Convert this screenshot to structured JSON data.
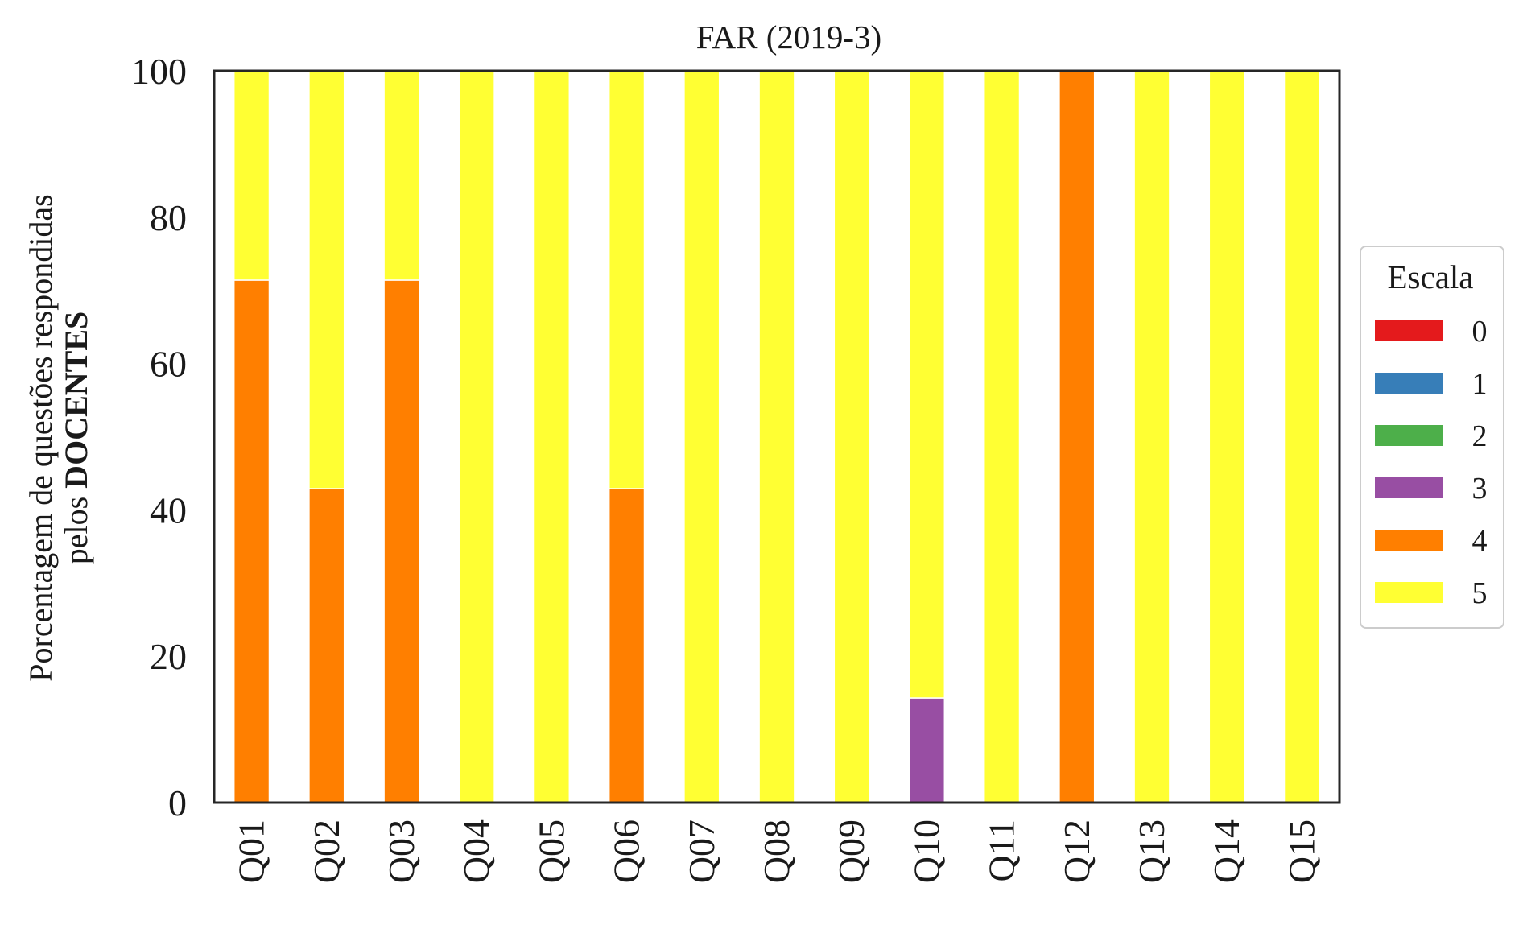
{
  "chart_data": {
    "type": "bar",
    "stacked": true,
    "orientation": "vertical",
    "title": "FAR (2019-3)",
    "ylabel_line1": "Porcentagem de questões respondidas",
    "ylabel_line2_prefix": "pelos ",
    "ylabel_line2_bold": "DOCENTES",
    "xlabel": "",
    "ylim": [
      0,
      100
    ],
    "yticks": [
      0,
      20,
      40,
      60,
      80,
      100
    ],
    "grid": false,
    "legend": {
      "title": "Escala",
      "placement": "right-center-outside"
    },
    "categories": [
      "Q01",
      "Q02",
      "Q03",
      "Q04",
      "Q05",
      "Q06",
      "Q07",
      "Q08",
      "Q09",
      "Q10",
      "Q11",
      "Q12",
      "Q13",
      "Q14",
      "Q15"
    ],
    "series": [
      {
        "name": "0",
        "color": "#e41a1c",
        "values": [
          0,
          0,
          0,
          0,
          0,
          0,
          0,
          0,
          0,
          0,
          0,
          0,
          0,
          0,
          0
        ]
      },
      {
        "name": "1",
        "color": "#377eb8",
        "values": [
          0,
          0,
          0,
          0,
          0,
          0,
          0,
          0,
          0,
          0,
          0,
          0,
          0,
          0,
          0
        ]
      },
      {
        "name": "2",
        "color": "#4daf4a",
        "values": [
          0,
          0,
          0,
          0,
          0,
          0,
          0,
          0,
          0,
          0,
          0,
          0,
          0,
          0,
          0
        ]
      },
      {
        "name": "3",
        "color": "#984ea3",
        "values": [
          0,
          0,
          0,
          0,
          0,
          0,
          0,
          0,
          0,
          14.3,
          0,
          0,
          0,
          0,
          0
        ]
      },
      {
        "name": "4",
        "color": "#ff7f00",
        "values": [
          71.4,
          42.9,
          71.4,
          0,
          0,
          42.9,
          0,
          0,
          0,
          0,
          0,
          100,
          0,
          0,
          0
        ]
      },
      {
        "name": "5",
        "color": "#ffff33",
        "values": [
          28.6,
          57.1,
          28.6,
          100,
          100,
          57.1,
          100,
          100,
          100,
          85.7,
          100,
          0,
          100,
          100,
          100
        ]
      }
    ]
  }
}
